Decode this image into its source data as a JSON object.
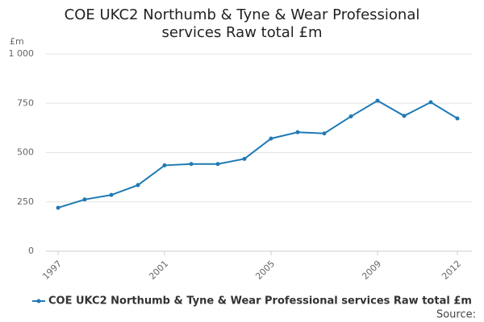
{
  "chart_data": {
    "type": "line",
    "title": "COE UKC2 Northumb & Tyne & Wear Professional services Raw total £m",
    "y_unit": "£m",
    "source": "Source:",
    "x": [
      1997,
      1998,
      1999,
      2000,
      2001,
      2002,
      2003,
      2004,
      2005,
      2006,
      2007,
      2008,
      2009,
      2010,
      2011,
      2012
    ],
    "series": [
      {
        "name": "COE UKC2 Northumb & Tyne & Wear Professional services Raw total £m",
        "color": "#1f7ab5",
        "values": [
          220,
          262,
          285,
          335,
          435,
          442,
          442,
          468,
          571,
          603,
          597,
          683,
          763,
          686,
          755,
          673
        ]
      }
    ],
    "xlim": [
      1997,
      2012
    ],
    "xticks": [
      1997,
      2001,
      2005,
      2009,
      2012
    ],
    "ylim": [
      0,
      1000
    ],
    "yticks": [
      0,
      250,
      500,
      750,
      {
        "value": 1000,
        "label": "1 000"
      }
    ],
    "grid": true,
    "legend": "bottom"
  }
}
